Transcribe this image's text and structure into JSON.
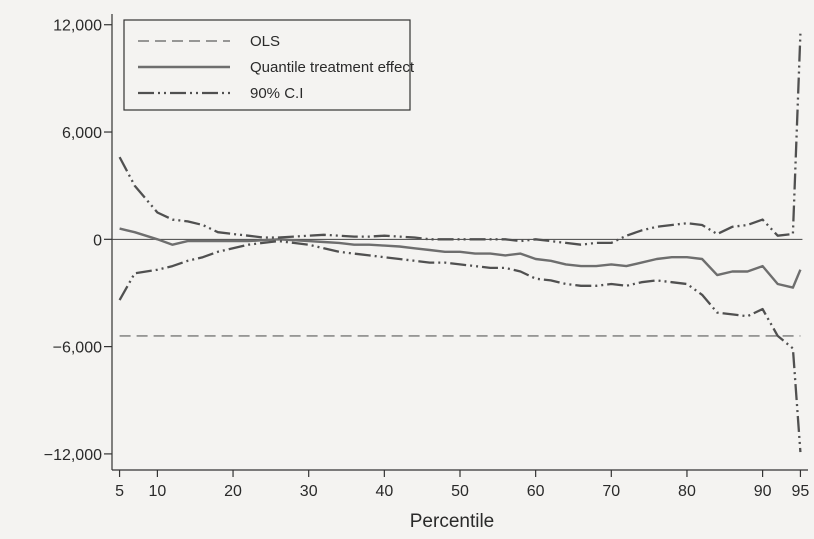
{
  "chart_data": {
    "type": "line",
    "title": "",
    "xlabel": "Percentile",
    "ylabel": "",
    "xlim": [
      4,
      96
    ],
    "ylim": [
      -12900,
      12600
    ],
    "x_ticks": [
      5,
      10,
      20,
      30,
      40,
      50,
      60,
      70,
      80,
      90,
      95
    ],
    "x_tick_labels": [
      "5",
      "10",
      "20",
      "30",
      "40",
      "50",
      "60",
      "70",
      "80",
      "90",
      "95"
    ],
    "y_ticks": [
      12000,
      6000,
      0,
      -6000,
      -12000
    ],
    "y_tick_labels": [
      "12,000",
      "6,000",
      "0",
      "−6,000",
      "−12,000"
    ],
    "grid": false,
    "zero_line": true,
    "legend_position": "top-left",
    "colors": {
      "ols": "#777777",
      "qte": "#6e6e6e",
      "ci": "#505050",
      "axis": "#333333"
    },
    "series": [
      {
        "name": "OLS",
        "style": "dashed",
        "x": [
          5,
          95
        ],
        "y": [
          -5400,
          -5400
        ]
      },
      {
        "name": "Quantile treatment effect",
        "style": "solid",
        "x": [
          5,
          7,
          10,
          12,
          14,
          16,
          18,
          20,
          22,
          24,
          26,
          28,
          30,
          32,
          34,
          36,
          38,
          40,
          42,
          44,
          46,
          48,
          50,
          52,
          54,
          56,
          58,
          60,
          62,
          64,
          66,
          68,
          70,
          72,
          74,
          76,
          78,
          80,
          82,
          84,
          86,
          88,
          90,
          92,
          94,
          95
        ],
        "y": [
          600,
          400,
          0,
          -300,
          -100,
          -100,
          -100,
          -100,
          -100,
          -50,
          0,
          -50,
          -100,
          -150,
          -200,
          -300,
          -300,
          -350,
          -400,
          -500,
          -600,
          -700,
          -700,
          -800,
          -800,
          -900,
          -800,
          -1100,
          -1200,
          -1400,
          -1500,
          -1500,
          -1400,
          -1500,
          -1300,
          -1100,
          -1000,
          -1000,
          -1100,
          -2000,
          -1800,
          -1800,
          -1500,
          -2500,
          -2700,
          -1700
        ]
      },
      {
        "name": "90% C.I",
        "style": "dash-dot-dot",
        "x": [
          5,
          7,
          10,
          12,
          14,
          16,
          18,
          20,
          22,
          24,
          26,
          28,
          30,
          32,
          34,
          36,
          38,
          40,
          42,
          44,
          46,
          48,
          50,
          52,
          54,
          56,
          58,
          60,
          62,
          64,
          66,
          68,
          70,
          72,
          74,
          76,
          78,
          80,
          82,
          84,
          86,
          88,
          90,
          92,
          94,
          95
        ],
        "y": [
          4600,
          3000,
          1500,
          1100,
          1000,
          800,
          400,
          300,
          200,
          100,
          100,
          150,
          200,
          250,
          200,
          150,
          150,
          200,
          150,
          100,
          0,
          0,
          0,
          0,
          0,
          0,
          -100,
          0,
          -100,
          -200,
          -300,
          -200,
          -200,
          200,
          500,
          700,
          800,
          900,
          800,
          300,
          700,
          800,
          1100,
          200,
          300,
          11500
        ]
      },
      {
        "name": "90% C.I",
        "style": "dash-dot-dot",
        "x": [
          5,
          7,
          10,
          12,
          14,
          16,
          18,
          20,
          22,
          24,
          26,
          28,
          30,
          32,
          34,
          36,
          38,
          40,
          42,
          44,
          46,
          48,
          50,
          52,
          54,
          56,
          58,
          60,
          62,
          64,
          66,
          68,
          70,
          72,
          74,
          76,
          78,
          80,
          82,
          84,
          86,
          88,
          90,
          92,
          94,
          95
        ],
        "y": [
          -3400,
          -1900,
          -1700,
          -1500,
          -1200,
          -1000,
          -700,
          -500,
          -300,
          -200,
          -100,
          -200,
          -300,
          -500,
          -700,
          -800,
          -900,
          -1000,
          -1100,
          -1200,
          -1300,
          -1300,
          -1400,
          -1500,
          -1600,
          -1600,
          -1800,
          -2200,
          -2300,
          -2500,
          -2600,
          -2600,
          -2500,
          -2600,
          -2400,
          -2300,
          -2400,
          -2500,
          -3100,
          -4100,
          -4200,
          -4300,
          -3900,
          -5400,
          -6100,
          -11900
        ]
      }
    ],
    "legend": [
      {
        "label": "OLS",
        "style": "dashed"
      },
      {
        "label": "Quantile treatment effect",
        "style": "solid"
      },
      {
        "label": "90% C.I",
        "style": "dash-dot-dot"
      }
    ]
  }
}
